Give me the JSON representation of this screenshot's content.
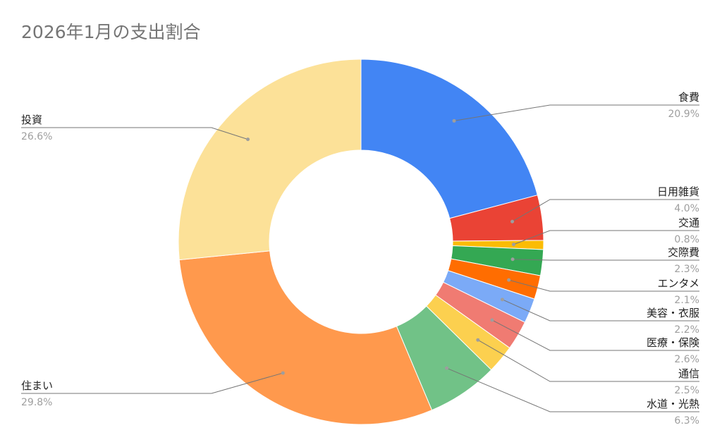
{
  "chart_data": {
    "type": "pie",
    "donut": true,
    "title": "2026年1月の支出割合",
    "slices": [
      {
        "label": "食費",
        "value": 20.9,
        "display": "20.9%",
        "color": "#4285F4",
        "side": "right"
      },
      {
        "label": "日用雑貨",
        "value": 4.0,
        "display": "4.0%",
        "color": "#EA4335",
        "side": "right"
      },
      {
        "label": "交通",
        "value": 0.8,
        "display": "0.8%",
        "color": "#FBBC04",
        "side": "right"
      },
      {
        "label": "交際費",
        "value": 2.3,
        "display": "2.3%",
        "color": "#34A853",
        "side": "right"
      },
      {
        "label": "エンタメ",
        "value": 2.1,
        "display": "2.1%",
        "color": "#FF6D01",
        "side": "right"
      },
      {
        "label": "美容・衣服",
        "value": 2.2,
        "display": "2.2%",
        "color": "#7BAAF7",
        "side": "right"
      },
      {
        "label": "医療・保険",
        "value": 2.6,
        "display": "2.6%",
        "color": "#F07B72",
        "side": "right"
      },
      {
        "label": "通信",
        "value": 2.5,
        "display": "2.5%",
        "color": "#FCD04F",
        "side": "right"
      },
      {
        "label": "水道・光熱",
        "value": 6.3,
        "display": "6.3%",
        "color": "#71C287",
        "side": "right"
      },
      {
        "label": "住まい",
        "value": 29.8,
        "display": "29.8%",
        "color": "#FF994D",
        "side": "left"
      },
      {
        "label": "投資",
        "value": 26.6,
        "display": "26.6%",
        "color": "#FCE198",
        "side": "left"
      }
    ],
    "legend": "none"
  }
}
